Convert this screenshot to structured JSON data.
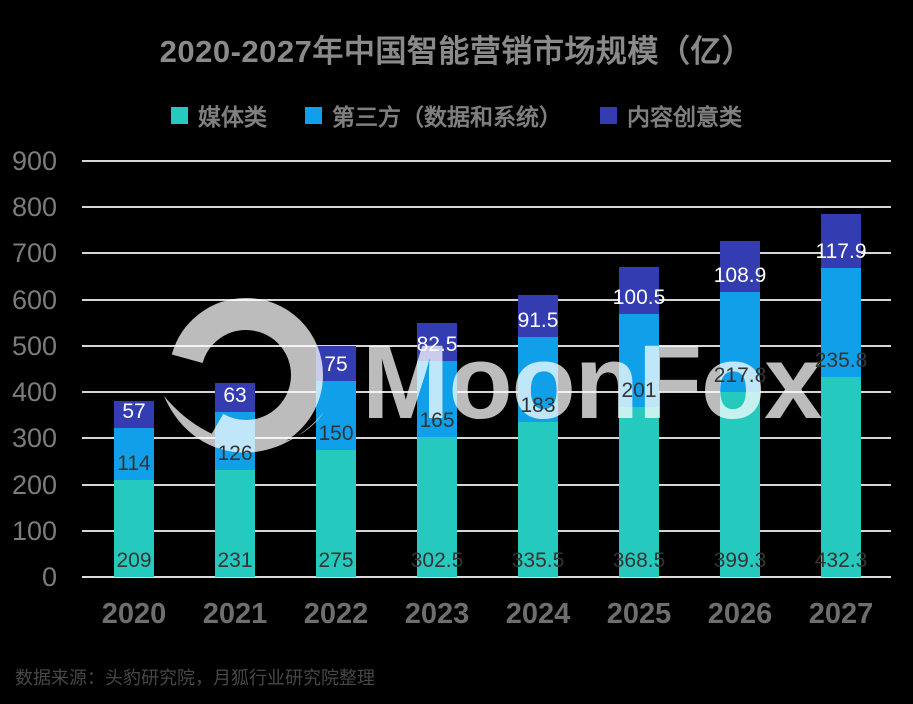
{
  "page": {
    "background": "#000000"
  },
  "header": {
    "title": "2020-2027年中国智能营销市场规模（亿）"
  },
  "chart_data": {
    "type": "bar",
    "stacked": true,
    "title": "2020-2027年中国智能营销市场规模（亿）",
    "categories": [
      "2020",
      "2021",
      "2022",
      "2023",
      "2024",
      "2025",
      "2026",
      "2027"
    ],
    "series": [
      {
        "name": "媒体类",
        "color": "#26C9BD",
        "label_color": "#343434",
        "values": [
          209,
          231,
          275,
          302.5,
          335.5,
          368.5,
          399.3,
          432.3
        ]
      },
      {
        "name": "第三方（数据和系统）",
        "color": "#10A0E9",
        "label_color": "#343434",
        "values": [
          114,
          126,
          150,
          165,
          183,
          201,
          217.8,
          235.8
        ]
      },
      {
        "name": "内容创意类",
        "color": "#333CB0",
        "label_color": "#FFFFFF",
        "values": [
          57,
          63,
          75,
          82.5,
          91.5,
          100.5,
          108.9,
          117.9
        ]
      }
    ],
    "xlabel": "",
    "ylabel": "",
    "ylim": [
      0,
      900
    ],
    "yticks": [
      0,
      100,
      200,
      300,
      400,
      500,
      600,
      700,
      800,
      900
    ],
    "grid": true,
    "legend_position": "top",
    "value_labels": "inside-base",
    "colors": {
      "background": "#000000",
      "gridline": "#D6D6D6",
      "baseline": "#DCDCDC",
      "title_text": "#8A8A8A",
      "ytick_text": "#7C7C7C",
      "xtick_text": "#6E6E6E",
      "legend_text": "#7F7F7F",
      "watermark": "#BCBCBC"
    }
  },
  "watermark": {
    "logo": "moonfox-moon-logo",
    "text": "MoonFox",
    "color": "#BCBCBC"
  },
  "footer": {
    "source_note": "数据来源：头豹研究院，月狐行业研究院整理"
  }
}
